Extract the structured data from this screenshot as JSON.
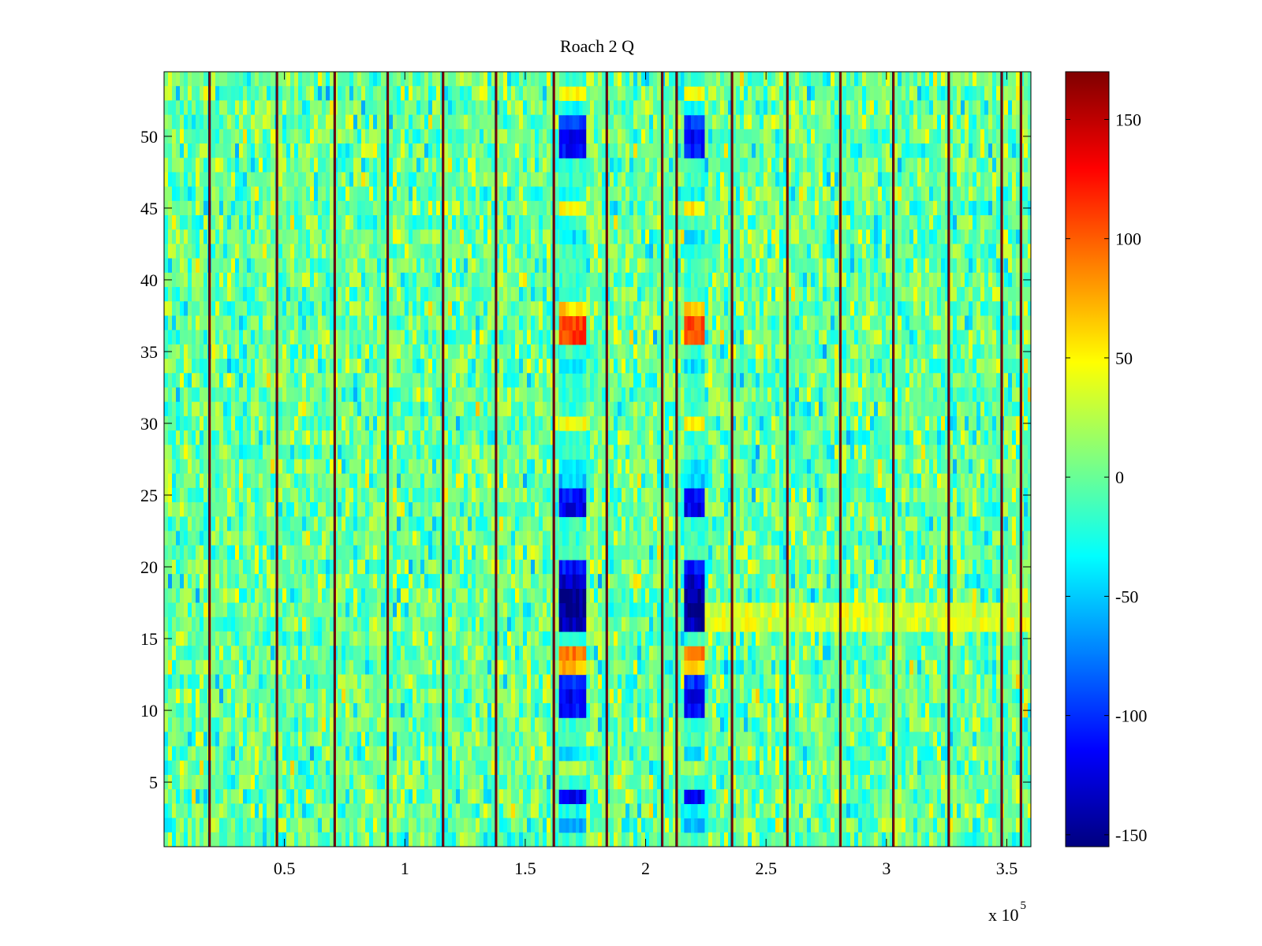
{
  "chart_data": {
    "type": "heatmap",
    "title": "Roach 2 Q",
    "xlabel": "",
    "ylabel": "",
    "x_exponent_label": "x 10",
    "x_exponent_power": "5",
    "xlim": [
      1,
      360000
    ],
    "ylim": [
      0.5,
      54.5
    ],
    "rows": 54,
    "colormap": "jet",
    "clim": [
      -155,
      170
    ],
    "x_ticks": [
      {
        "value": 50000,
        "label": "0.5"
      },
      {
        "value": 100000,
        "label": "1"
      },
      {
        "value": 150000,
        "label": "1.5"
      },
      {
        "value": 200000,
        "label": "2"
      },
      {
        "value": 250000,
        "label": "2.5"
      },
      {
        "value": 300000,
        "label": "3"
      },
      {
        "value": 350000,
        "label": "3.5"
      }
    ],
    "y_ticks": [
      {
        "value": 5,
        "label": "5"
      },
      {
        "value": 10,
        "label": "10"
      },
      {
        "value": 15,
        "label": "15"
      },
      {
        "value": 20,
        "label": "20"
      },
      {
        "value": 25,
        "label": "25"
      },
      {
        "value": 30,
        "label": "30"
      },
      {
        "value": 35,
        "label": "35"
      },
      {
        "value": 40,
        "label": "40"
      },
      {
        "value": 45,
        "label": "45"
      },
      {
        "value": 50,
        "label": "50"
      }
    ],
    "colorbar_ticks": [
      {
        "value": 150,
        "label": "150"
      },
      {
        "value": 100,
        "label": "100"
      },
      {
        "value": 50,
        "label": "50"
      },
      {
        "value": 0,
        "label": "0"
      },
      {
        "value": -50,
        "label": "-50"
      },
      {
        "value": -100,
        "label": "-100"
      },
      {
        "value": -150,
        "label": "-150"
      }
    ],
    "background_level": 0,
    "boundary_lines_x": [
      19000,
      47000,
      71000,
      93000,
      116000,
      138000,
      162000,
      184000,
      207000,
      213000,
      236000,
      259000,
      281000,
      303000,
      326000,
      348000,
      356000
    ],
    "boundary_line_value": 170,
    "blob_columns": [
      {
        "x_from": 164000,
        "x_to": 174000,
        "row_values": {
          "2": -60,
          "3": -30,
          "4": -120,
          "6": 20,
          "7": -40,
          "10": -110,
          "11": -120,
          "12": -100,
          "13": 70,
          "14": 90,
          "16": -140,
          "17": -150,
          "18": -150,
          "19": -130,
          "20": -110,
          "24": -120,
          "25": -110,
          "26": -50,
          "27": -40,
          "30": 50,
          "34": -40,
          "36": 110,
          "37": 110,
          "38": 60,
          "43": -40,
          "45": 50,
          "46": -30,
          "49": -110,
          "50": -120,
          "51": -100,
          "52": -30,
          "53": 50
        }
      },
      {
        "x_from": 216000,
        "x_to": 224000,
        "row_values": {
          "2": -60,
          "3": -30,
          "4": -120,
          "6": 20,
          "7": -40,
          "10": -110,
          "11": -120,
          "12": -100,
          "13": 70,
          "14": 90,
          "16": -140,
          "17": -150,
          "18": -150,
          "19": -130,
          "20": -110,
          "24": -120,
          "25": -110,
          "26": -50,
          "27": -40,
          "30": 50,
          "34": -40,
          "36": 110,
          "37": 110,
          "38": 60,
          "43": -40,
          "45": 50,
          "46": -30,
          "49": -110,
          "50": -120,
          "51": -100,
          "52": -30,
          "53": 50
        }
      }
    ],
    "warm_band": {
      "x_from": 222000,
      "x_to": 360000,
      "rows": [
        16,
        17
      ],
      "level": 35
    }
  }
}
